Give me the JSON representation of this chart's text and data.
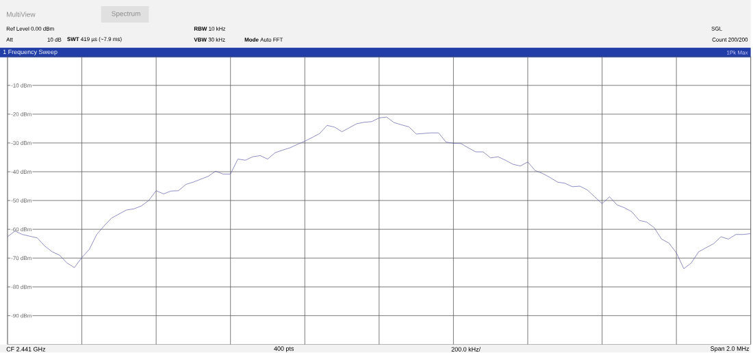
{
  "chart_data": {
    "type": "line",
    "categories": [
      null,
      null,
      null,
      null,
      null,
      null,
      null,
      null,
      null,
      null,
      null,
      null,
      null,
      null,
      null,
      null,
      null,
      null,
      null,
      null,
      null,
      null,
      null,
      null,
      null,
      null,
      null,
      null,
      null,
      null,
      null,
      null,
      null,
      null,
      null,
      null,
      null,
      null,
      null,
      null,
      null,
      null,
      null,
      null,
      null,
      null,
      null,
      null,
      null,
      null,
      null,
      null,
      null,
      null,
      null,
      null,
      null,
      null,
      null,
      null,
      null,
      null,
      null,
      null,
      null,
      null,
      null,
      null,
      null,
      null,
      null,
      null,
      null,
      null,
      null,
      null,
      null,
      null,
      null,
      null,
      null,
      null,
      null,
      null,
      null,
      null,
      null,
      null,
      null,
      null,
      null,
      null,
      null,
      null,
      null,
      null,
      null,
      null,
      null,
      null,
      null
    ],
    "series": [
      {
        "color": "#5c5ca8",
        "line_style": "solid",
        "values": [
          -62.6,
          -60.6,
          -61.8,
          -62.4,
          -63,
          -65.8,
          -67.8,
          -69,
          -71.7,
          -73.3,
          -69.8,
          -67,
          -61.8,
          -58.8,
          -56.1,
          -54.7,
          -53.3,
          -52.9,
          -51.9,
          -50,
          -46.6,
          -47.7,
          -46.7,
          -46.6,
          -44.4,
          -43.6,
          -42.6,
          -41.6,
          -39.8,
          -40.8,
          -40.8,
          -35.6,
          -36,
          -34.8,
          -34.4,
          -35.6,
          -33.4,
          -32.5,
          -31.7,
          -30.5,
          -29.4,
          -28.1,
          -26.7,
          -23.9,
          -24.5,
          -26.1,
          -24.7,
          -23.3,
          -22.8,
          -22.6,
          -21.3,
          -21,
          -22.9,
          -23.7,
          -24.4,
          -26.9,
          -26.7,
          -26.5,
          -26.5,
          -29.7,
          -30.1,
          -30.2,
          -31.7,
          -33.1,
          -33.1,
          -35.2,
          -34.8,
          -36,
          -37.4,
          -38,
          -36.6,
          -39.6,
          -40.6,
          -42,
          -43.6,
          -44,
          -45.2,
          -45,
          -46.3,
          -48.7,
          -51.1,
          -48.7,
          -51.5,
          -52.5,
          -53.9,
          -56.9,
          -57.5,
          -59.4,
          -63.4,
          -64.8,
          -68.2,
          -73.7,
          -71.7,
          -67.8,
          -66.4,
          -65,
          -62.6,
          -63.4,
          -61.8,
          -61.8,
          -61.5
        ]
      }
    ],
    "ylim": [
      -100,
      0
    ],
    "yticks": [
      {
        "value": -10,
        "label": "-10 dBm"
      },
      {
        "value": -20,
        "label": "-20 dBm"
      },
      {
        "value": -30,
        "label": "-30 dBm"
      },
      {
        "value": -40,
        "label": "-40 dBm"
      },
      {
        "value": -50,
        "label": "-50 dBm"
      },
      {
        "value": -60,
        "label": "-60 dBm"
      },
      {
        "value": -70,
        "label": "-70 dBm"
      },
      {
        "value": -80,
        "label": "-80 dBm"
      },
      {
        "value": -90,
        "label": "-90 dBm"
      }
    ],
    "tick_labels": "y",
    "grid": true,
    "annotations": [
      "MultiView",
      "Spectrum",
      "Ref Level 0.00 dBm",
      "Att",
      "10 dB",
      "**SWT** 419 µs (~7.9 ms)",
      "**RBW** 10 kHz",
      "**VBW** 30 kHz",
      "**Mode** Auto FFT",
      "SGL",
      "Count 200/200",
      "1 Frequency Sweep",
      "1Pk Max",
      "CF 2.441 GHz",
      "400 pts",
      "200.0 kHz/",
      "Span 2.0 MHz"
    ]
  }
}
